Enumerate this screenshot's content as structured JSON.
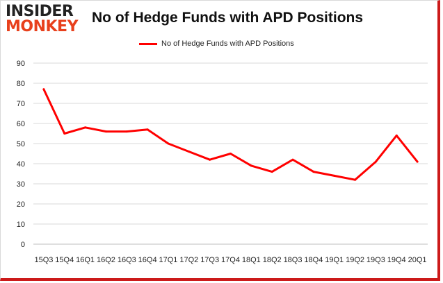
{
  "brand": {
    "line1": "INSIDER",
    "line2": "MONKEY"
  },
  "chart_data": {
    "type": "line",
    "title": "No of Hedge Funds with APD Positions",
    "xlabel": "",
    "ylabel": "",
    "categories": [
      "15Q3",
      "15Q4",
      "16Q1",
      "16Q2",
      "16Q3",
      "16Q4",
      "17Q1",
      "17Q2",
      "17Q3",
      "17Q4",
      "18Q1",
      "18Q2",
      "18Q3",
      "18Q4",
      "19Q1",
      "19Q2",
      "19Q3",
      "19Q4",
      "20Q1"
    ],
    "series": [
      {
        "name": "No of Hedge Funds with APD Positions",
        "values": [
          77,
          55,
          58,
          56,
          56,
          57,
          50,
          46,
          42,
          45,
          39,
          36,
          42,
          36,
          34,
          32,
          41,
          54,
          41
        ],
        "color": "#ff0000"
      }
    ],
    "ylim": [
      0,
      90
    ],
    "yticks": [
      0,
      10,
      20,
      30,
      40,
      50,
      60,
      70,
      80,
      90
    ],
    "grid": true,
    "legend": "top-center"
  }
}
